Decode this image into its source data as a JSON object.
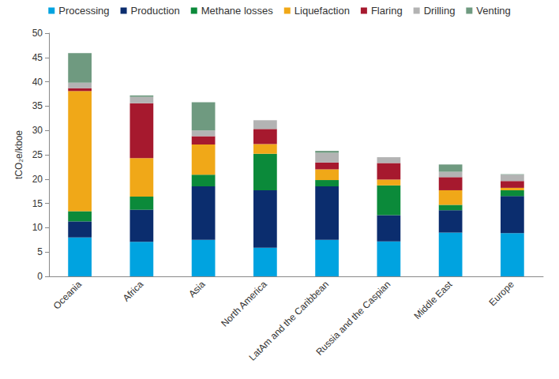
{
  "chart_data": {
    "type": "bar",
    "stacked": true,
    "grid": false,
    "legend": "top",
    "ylabel": "tCO₂e/kboe",
    "categories": [
      "Oceania",
      "Africa",
      "Asia",
      "North America",
      "LatAm and the Caribbean",
      "Russia and the Caspian",
      "Middle East",
      "Europe"
    ],
    "ylim": [
      0,
      50
    ],
    "yticks": [
      0,
      5,
      10,
      15,
      20,
      25,
      30,
      35,
      40,
      45,
      50
    ],
    "series": [
      {
        "name": "Processing",
        "color": "#00a3e0",
        "values": [
          8.0,
          7.1,
          7.5,
          5.9,
          7.5,
          7.2,
          9.0,
          8.9
        ]
      },
      {
        "name": "Production",
        "color": "#0b2d6e",
        "values": [
          3.3,
          6.6,
          11.0,
          11.8,
          11.0,
          5.4,
          4.6,
          7.6
        ]
      },
      {
        "name": "Methane losses",
        "color": "#0b8a3a",
        "values": [
          2.1,
          2.7,
          2.4,
          7.5,
          1.3,
          6.1,
          1.1,
          1.2
        ]
      },
      {
        "name": "Liquefaction",
        "color": "#f0a818",
        "values": [
          24.7,
          7.9,
          6.2,
          2.0,
          2.2,
          1.2,
          3.0,
          0.5
        ]
      },
      {
        "name": "Flaring",
        "color": "#a6192e",
        "values": [
          0.6,
          11.3,
          1.7,
          3.1,
          1.4,
          3.4,
          2.7,
          1.4
        ]
      },
      {
        "name": "Drilling",
        "color": "#b3b3b3",
        "values": [
          1.1,
          1.3,
          1.2,
          1.8,
          2.0,
          1.2,
          1.1,
          1.3
        ]
      },
      {
        "name": "Venting",
        "color": "#6f9a80",
        "values": [
          6.1,
          0.3,
          5.8,
          0.0,
          0.4,
          0.0,
          1.5,
          0.1
        ]
      }
    ]
  }
}
